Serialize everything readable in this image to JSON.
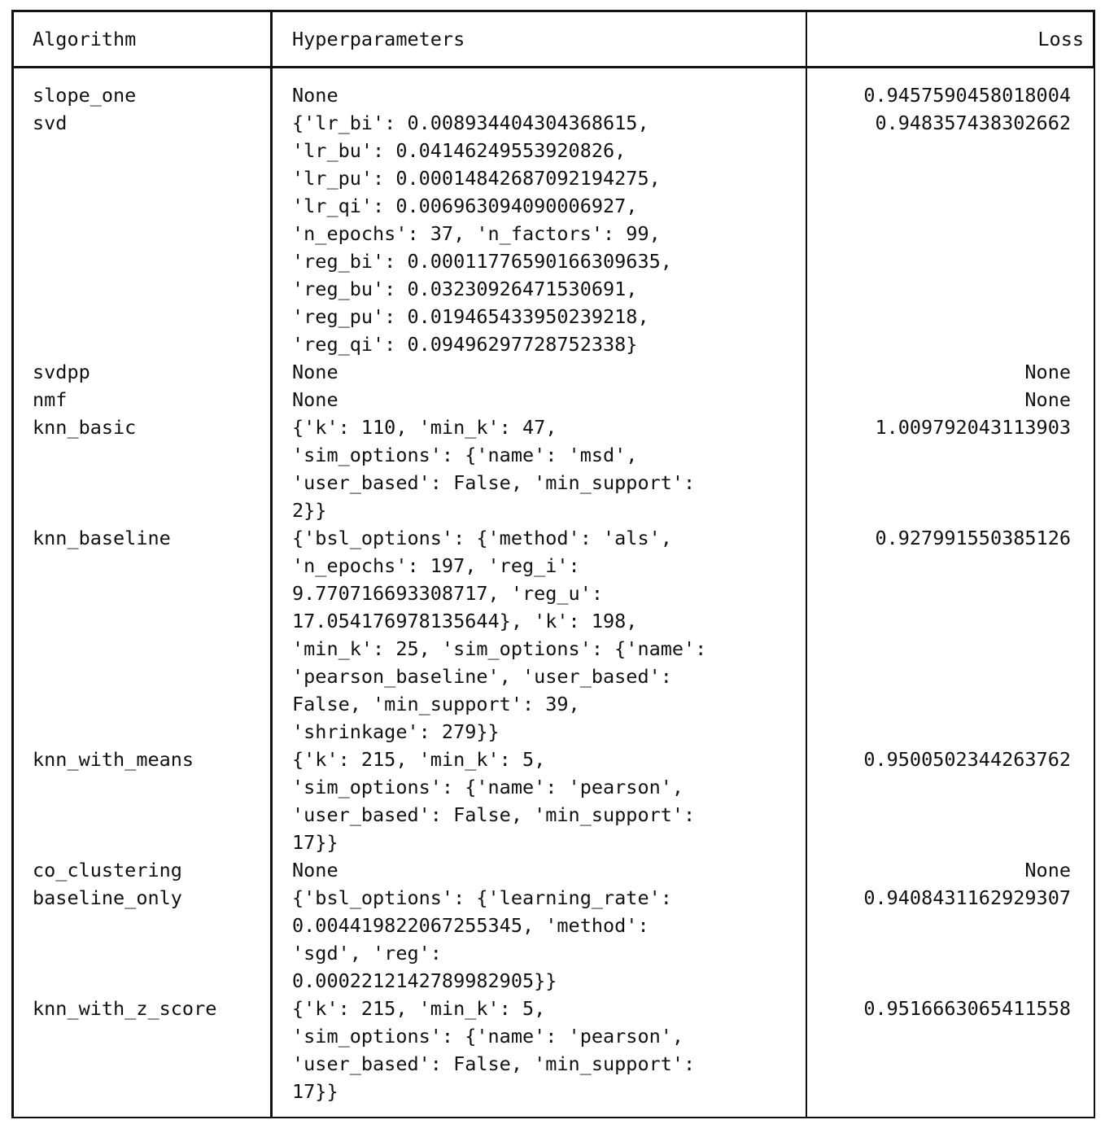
{
  "table": {
    "columns": [
      "Algorithm",
      "Hyperparameters",
      "Loss"
    ],
    "rows": [
      {
        "algorithm": "slope_one",
        "hyperparameters": "None",
        "loss": "0.9457590458018004",
        "lines": 1
      },
      {
        "algorithm": "svd",
        "hyperparameters": "{'lr_bi': 0.00893440430436861 5,\n'lr_bu': 0.04146249553920826,\n'lr_pu': 0.00014842687092194275,\n'lr_qi': 0.006963094090006927,\n'n_epochs': 37, 'n_factors': 99,\n'reg_bi': 0.00011776590166309635,\n'reg_bu': 0.03230926471530691,\n'reg_pu': 0.01946543395023921 8,\n'reg_qi': 0.09496297728752338}",
        "loss": "0.948357438302662",
        "lines": 9
      },
      {
        "algorithm": "svdpp",
        "hyperparameters": "None",
        "loss": "None",
        "lines": 1
      },
      {
        "algorithm": "nmf",
        "hyperparameters": "None",
        "loss": "None",
        "lines": 1
      },
      {
        "algorithm": "knn_basic",
        "hyperparameters": "{'k': 110, 'min_k': 47,\n'sim_options': {'name': 'msd',\n'user_based': False, 'min_support':\n2}}",
        "loss": "1.009792043113903",
        "lines": 4
      },
      {
        "algorithm": "knn_baseline",
        "hyperparameters": "{'bsl_options': {'method': 'als',\n'n_epochs': 197, 'reg_i':\n9.770716693308717, 'reg_u':\n17.054176978135644}, 'k': 198,\n'min_k': 25, 'sim_options': {'name':\n'pearson_baseline', 'user_based':\nFalse, 'min_support': 39,\n'shrinkage': 279}}",
        "loss": "0.927991550385126",
        "lines": 8
      },
      {
        "algorithm": "knn_with_means",
        "hyperparameters": "{'k': 215, 'min_k': 5,\n'sim_options': {'name': 'pearson',\n'user_based': False, 'min_support':\n17}}",
        "loss": "0.9500502344263762",
        "lines": 4
      },
      {
        "algorithm": "co_clustering",
        "hyperparameters": "None",
        "loss": "None",
        "lines": 1
      },
      {
        "algorithm": "baseline_only",
        "hyperparameters": "{'bsl_options': {'learning_rate':\n0.00441982206725534 5, 'method':\n'sgd', 'reg':\n0.000221214278998290 5}}",
        "loss": "0.9408431162929307",
        "lines": 4
      },
      {
        "algorithm": "knn_with_z_score",
        "hyperparameters": "{'k': 215, 'min_k': 5,\n'sim_options': {'name': 'pearson',\n'user_based': False, 'min_support':\n17}}",
        "loss": "0.9516663065411558",
        "lines": 4
      }
    ]
  }
}
